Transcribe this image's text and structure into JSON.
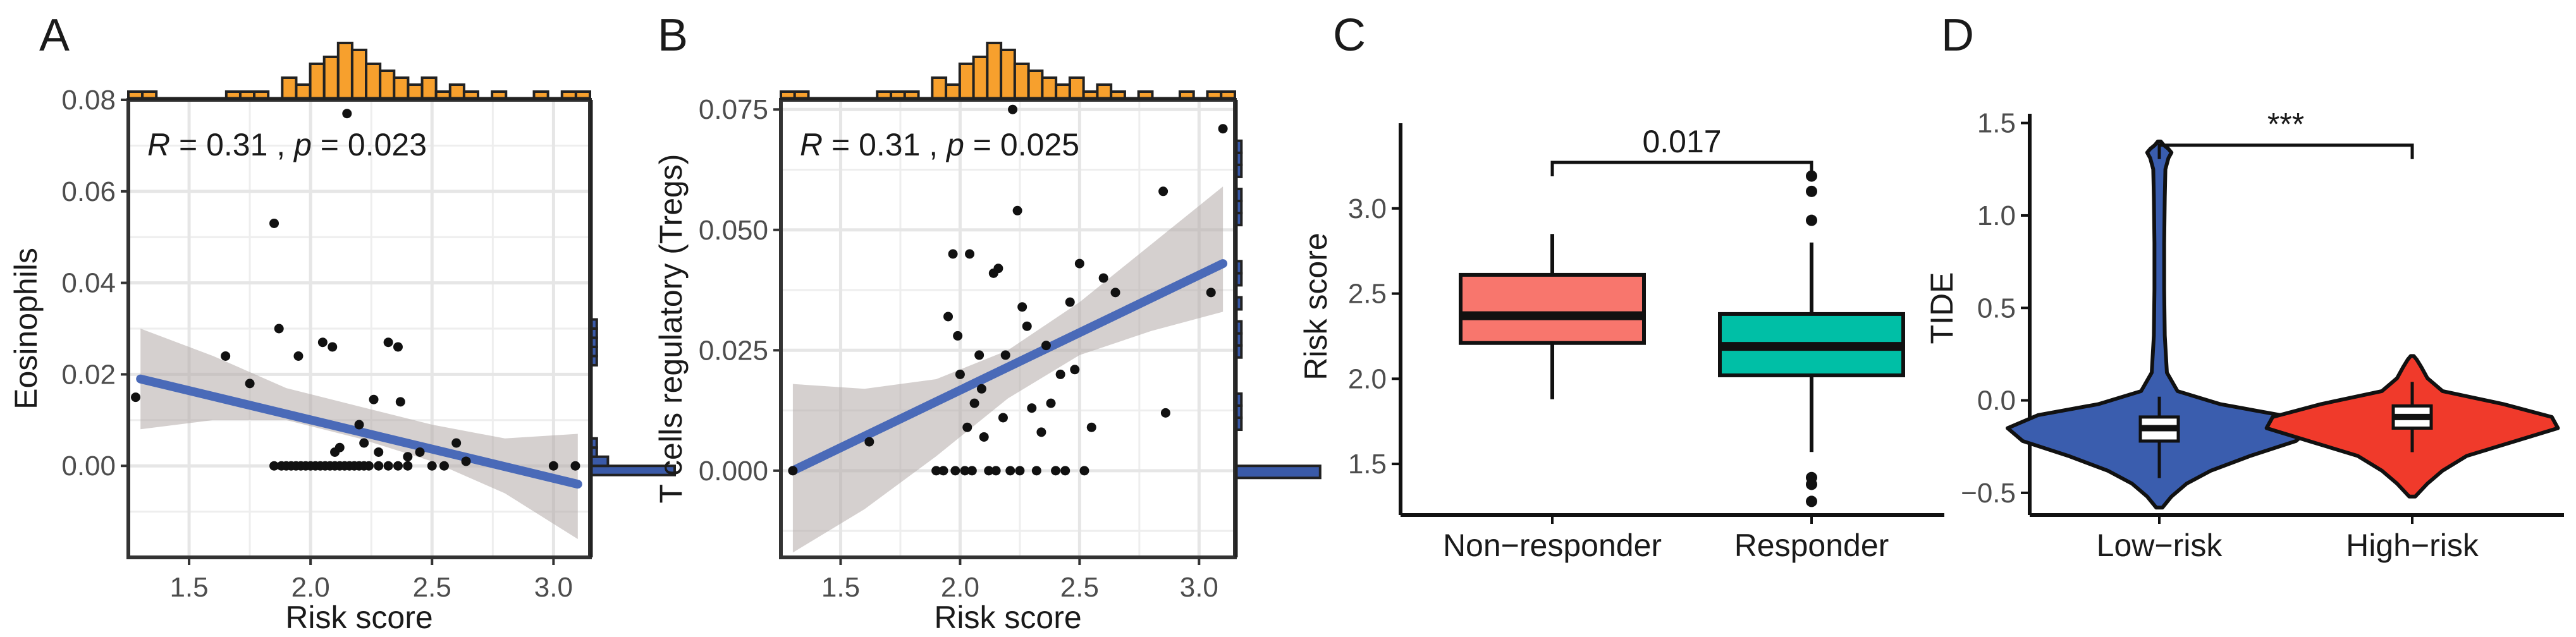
{
  "chart_data": [
    {
      "type": "scatter",
      "panel_label": "A",
      "title": "",
      "xlabel": "Risk score",
      "ylabel": "Eosinophils",
      "xlim": [
        1.25,
        3.15
      ],
      "ylim": [
        -0.02,
        0.08
      ],
      "xticks": [
        1.5,
        2.0,
        2.5,
        3.0
      ],
      "xtick_labels": [
        "1.5",
        "2.0",
        "2.5",
        "3.0"
      ],
      "yticks": [
        0.0,
        0.02,
        0.04,
        0.06,
        0.08
      ],
      "ytick_labels": [
        "0.00",
        "0.02",
        "0.04",
        "0.06",
        "0.08"
      ],
      "annotation": {
        "r_symbol": "R",
        "r_text": " =  0.31 , ",
        "p_symbol": "p",
        "p_text": " = 0.023"
      },
      "points": [
        [
          1.28,
          0.015
        ],
        [
          1.65,
          0.024
        ],
        [
          1.75,
          0.018
        ],
        [
          1.85,
          0.053
        ],
        [
          1.87,
          0.03
        ],
        [
          1.95,
          0.024
        ],
        [
          2.05,
          0.027
        ],
        [
          2.09,
          0.026
        ],
        [
          2.15,
          0.077
        ],
        [
          2.2,
          0.009
        ],
        [
          2.22,
          0.005
        ],
        [
          2.26,
          0.0145
        ],
        [
          2.32,
          0.027
        ],
        [
          2.36,
          0.026
        ],
        [
          2.37,
          0.014
        ],
        [
          2.4,
          0.002
        ],
        [
          2.45,
          0.003
        ],
        [
          2.6,
          0.005
        ],
        [
          2.64,
          0.001
        ],
        [
          3.0,
          0.0
        ],
        [
          3.09,
          0.0
        ],
        [
          2.1,
          0.003
        ],
        [
          2.12,
          0.004
        ],
        [
          2.28,
          0.003
        ],
        [
          1.85,
          0.0
        ],
        [
          1.88,
          0.0
        ],
        [
          1.9,
          0.0
        ],
        [
          1.92,
          0.0
        ],
        [
          1.94,
          0.0
        ],
        [
          1.96,
          0.0
        ],
        [
          1.98,
          0.0
        ],
        [
          2.0,
          0.0
        ],
        [
          2.02,
          0.0
        ],
        [
          2.04,
          0.0
        ],
        [
          2.06,
          0.0
        ],
        [
          2.08,
          0.0
        ],
        [
          2.1,
          0.0
        ],
        [
          2.12,
          0.0
        ],
        [
          2.14,
          0.0
        ],
        [
          2.16,
          0.0
        ],
        [
          2.18,
          0.0
        ],
        [
          2.2,
          0.0
        ],
        [
          2.22,
          0.0
        ],
        [
          2.24,
          0.0
        ],
        [
          2.28,
          0.0
        ],
        [
          2.32,
          0.0
        ],
        [
          2.36,
          0.0
        ],
        [
          2.4,
          0.0
        ],
        [
          2.5,
          0.0
        ],
        [
          2.55,
          0.0
        ]
      ],
      "regression": {
        "x": [
          1.3,
          3.1
        ],
        "y": [
          0.019,
          -0.004
        ]
      },
      "ci_band": {
        "x": [
          1.3,
          1.6,
          1.9,
          2.2,
          2.5,
          2.8,
          3.1
        ],
        "lower": [
          0.008,
          0.01,
          0.01,
          0.006,
          0.001,
          -0.006,
          -0.016
        ],
        "upper": [
          0.03,
          0.024,
          0.017,
          0.013,
          0.009,
          0.006,
          0.007
        ]
      },
      "top_hist": {
        "counts": [
          1,
          1,
          0,
          0,
          0,
          0,
          0,
          1,
          1,
          1,
          0,
          3,
          2,
          5,
          6,
          8,
          7,
          5,
          4,
          3,
          2,
          3,
          1,
          2,
          1,
          0,
          1,
          0,
          0,
          1,
          0,
          1,
          1
        ]
      },
      "right_hist": {
        "bins_lo": -0.002,
        "bin_width": 0.002,
        "counts": [
          15,
          3,
          1,
          1,
          0,
          0,
          0,
          0,
          0,
          0,
          0,
          0,
          1,
          1,
          1,
          1,
          1,
          0,
          0,
          0,
          0,
          0,
          0,
          0,
          0,
          0,
          0,
          0,
          0,
          0,
          0,
          0,
          0,
          0,
          0,
          0,
          0,
          0,
          0,
          0,
          0
        ]
      }
    },
    {
      "type": "scatter",
      "panel_label": "B",
      "title": "",
      "xlabel": "Risk score",
      "ylabel": "T cells regulatory (Tregs)",
      "xlim": [
        1.25,
        3.15
      ],
      "ylim": [
        -0.018,
        0.077
      ],
      "xticks": [
        1.5,
        2.0,
        2.5,
        3.0
      ],
      "xtick_labels": [
        "1.5",
        "2.0",
        "2.5",
        "3.0"
      ],
      "yticks": [
        0.0,
        0.025,
        0.05,
        0.075
      ],
      "ytick_labels": [
        "0.000",
        "0.025",
        "0.050",
        "0.075"
      ],
      "annotation": {
        "r_symbol": "R",
        "r_text": " = 0.31 , ",
        "p_symbol": "p",
        "p_text": " = 0.025"
      },
      "points": [
        [
          1.3,
          0.0
        ],
        [
          1.62,
          0.006
        ],
        [
          1.9,
          0.0
        ],
        [
          1.93,
          0.0
        ],
        [
          1.95,
          0.032
        ],
        [
          1.97,
          0.045
        ],
        [
          1.99,
          0.028
        ],
        [
          2.0,
          0.02
        ],
        [
          2.02,
          0.0
        ],
        [
          2.03,
          0.009
        ],
        [
          2.04,
          0.045
        ],
        [
          2.06,
          0.014
        ],
        [
          2.08,
          0.024
        ],
        [
          2.09,
          0.017
        ],
        [
          2.1,
          0.007
        ],
        [
          2.12,
          0.0
        ],
        [
          2.14,
          0.041
        ],
        [
          2.16,
          0.042
        ],
        [
          2.18,
          0.011
        ],
        [
          2.19,
          0.024
        ],
        [
          2.21,
          0.0
        ],
        [
          2.22,
          0.075
        ],
        [
          2.24,
          0.054
        ],
        [
          2.26,
          0.034
        ],
        [
          2.28,
          0.03
        ],
        [
          2.3,
          0.013
        ],
        [
          2.32,
          0.0
        ],
        [
          2.34,
          0.008
        ],
        [
          2.36,
          0.026
        ],
        [
          2.38,
          0.014
        ],
        [
          2.4,
          0.0
        ],
        [
          2.42,
          0.02
        ],
        [
          2.44,
          0.0
        ],
        [
          2.46,
          0.035
        ],
        [
          2.48,
          0.021
        ],
        [
          2.5,
          0.043
        ],
        [
          2.52,
          0.0
        ],
        [
          2.55,
          0.009
        ],
        [
          2.6,
          0.04
        ],
        [
          2.65,
          0.037
        ],
        [
          2.85,
          0.058
        ],
        [
          2.86,
          0.012
        ],
        [
          3.05,
          0.037
        ],
        [
          3.1,
          0.071
        ],
        [
          1.98,
          0.0
        ],
        [
          2.05,
          0.0
        ],
        [
          2.15,
          0.0
        ],
        [
          2.25,
          0.0
        ]
      ],
      "regression": {
        "x": [
          1.3,
          3.1
        ],
        "y": [
          0.0,
          0.043
        ]
      },
      "ci_band": {
        "x": [
          1.3,
          1.6,
          1.9,
          2.2,
          2.5,
          2.8,
          3.1
        ],
        "lower": [
          -0.017,
          -0.008,
          0.003,
          0.015,
          0.024,
          0.029,
          0.033
        ],
        "upper": [
          0.018,
          0.017,
          0.019,
          0.025,
          0.035,
          0.047,
          0.059
        ]
      },
      "top_hist": {
        "counts": [
          1,
          1,
          0,
          0,
          0,
          0,
          0,
          1,
          1,
          1,
          0,
          3,
          2,
          5,
          6,
          8,
          7,
          5,
          4,
          3,
          2,
          3,
          1,
          2,
          1,
          0,
          1,
          0,
          0,
          1,
          0,
          1,
          1
        ]
      },
      "right_hist": {
        "bins_lo": -0.0015,
        "bin_width": 0.0025,
        "counts": [
          16,
          0,
          0,
          0,
          1,
          1,
          1,
          0,
          0,
          0,
          1,
          1,
          1,
          0,
          1,
          0,
          1,
          1,
          0,
          0,
          0,
          1,
          1,
          1,
          0,
          1,
          1,
          1,
          0,
          0,
          0,
          0,
          0
        ]
      }
    },
    {
      "type": "box",
      "panel_label": "C",
      "title": "",
      "xlabel": "",
      "ylabel": "Risk score",
      "ylim": [
        1.2,
        3.5
      ],
      "yticks": [
        1.5,
        2.0,
        2.5,
        3.0
      ],
      "ytick_labels": [
        "1.5",
        "2.0",
        "2.5",
        "3.0"
      ],
      "categories": [
        "Non−responder",
        "Responder"
      ],
      "boxes": [
        {
          "name": "Non−responder",
          "min": 1.88,
          "q1": 2.21,
          "median": 2.37,
          "q3": 2.61,
          "max": 2.85,
          "outliers": [],
          "color": "#f8766d"
        },
        {
          "name": "Responder",
          "min": 1.57,
          "q1": 2.02,
          "median": 2.19,
          "q3": 2.38,
          "max": 2.8,
          "outliers": [
            2.93,
            3.1,
            3.19,
            1.42,
            1.38,
            1.28
          ],
          "color": "#00bfa6"
        }
      ],
      "significance": "0.017",
      "sig_y": 3.27
    },
    {
      "type": "violin",
      "panel_label": "D",
      "title": "",
      "xlabel": "",
      "ylabel": "TIDE",
      "ylim": [
        -0.62,
        1.55
      ],
      "yticks": [
        -0.5,
        0.0,
        0.5,
        1.0,
        1.5
      ],
      "ytick_labels": [
        "−0.5",
        "0.0",
        "0.5",
        "1.0",
        "1.5"
      ],
      "categories": [
        "Low−risk",
        "High−risk"
      ],
      "violins": [
        {
          "name": "Low−risk",
          "color": "#3a5dae",
          "q1": -0.22,
          "median": -0.15,
          "q3": -0.09,
          "lo": -0.42,
          "hi": 0.02,
          "profile_y": [
            -0.58,
            -0.52,
            -0.45,
            -0.38,
            -0.3,
            -0.22,
            -0.15,
            -0.08,
            -0.02,
            0.05,
            0.15,
            0.35,
            0.6,
            0.85,
            1.1,
            1.25,
            1.31,
            1.34,
            1.36,
            1.38,
            1.4
          ],
          "profile_w": [
            0.01,
            0.04,
            0.09,
            0.17,
            0.3,
            0.45,
            0.5,
            0.4,
            0.2,
            0.06,
            0.025,
            0.018,
            0.016,
            0.016,
            0.018,
            0.02,
            0.03,
            0.04,
            0.03,
            0.015,
            0.005
          ]
        },
        {
          "name": "High−risk",
          "color": "#f03a2b",
          "q1": -0.15,
          "median": -0.09,
          "q3": -0.03,
          "lo": -0.28,
          "hi": 0.1,
          "profile_y": [
            -0.52,
            -0.45,
            -0.38,
            -0.3,
            -0.22,
            -0.15,
            -0.09,
            -0.02,
            0.05,
            0.12,
            0.18,
            0.22,
            0.24
          ],
          "profile_w": [
            0.01,
            0.05,
            0.1,
            0.18,
            0.34,
            0.48,
            0.46,
            0.3,
            0.1,
            0.05,
            0.03,
            0.015,
            0.005
          ]
        }
      ],
      "significance": "***",
      "sig_y": 1.38
    }
  ]
}
